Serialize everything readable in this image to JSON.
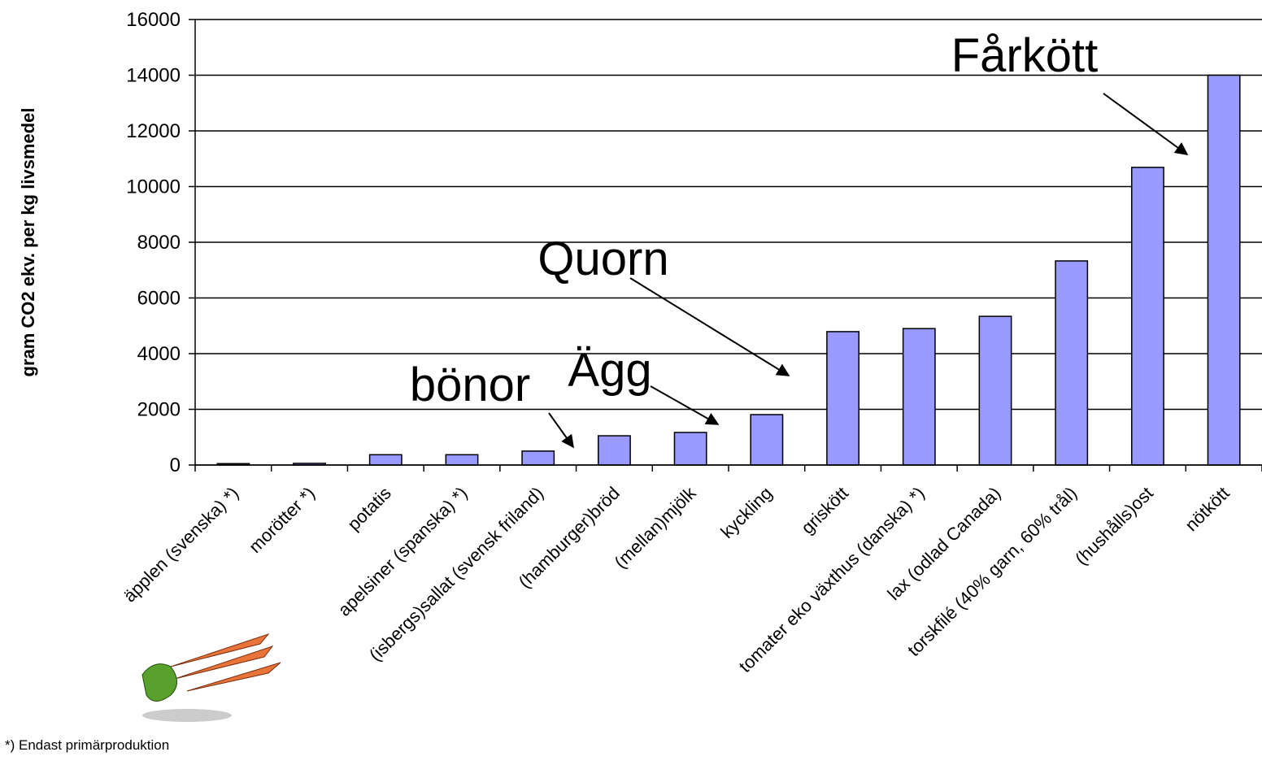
{
  "chart_data": {
    "type": "bar",
    "y_label": "gram CO2 ekv. per kg livsmedel",
    "categories": [
      "äpplen (svenska) *)",
      "morötter *)",
      "potatis",
      "apelsiner (spanska) *)",
      "(isbergs)sallat (svensk friland)",
      "(hamburger)bröd",
      "(mellan)mjölk",
      "kyckling",
      "griskött",
      "tomater eko växthus (danska) *)",
      "lax (odlad Canada)",
      "torskfilé (40% garn, 60% trål)",
      "(hushålls)ost",
      "nötkött"
    ],
    "values": [
      50,
      60,
      370,
      370,
      500,
      1050,
      1170,
      1810,
      4790,
      4900,
      5340,
      7330,
      10690,
      14000
    ],
    "color": "#9999ff",
    "ylim": [
      0,
      16000
    ],
    "yticks": [
      0,
      2000,
      4000,
      6000,
      8000,
      10000,
      12000,
      14000,
      16000
    ],
    "grid": true,
    "annotations": [
      "Fårkött",
      "Quorn",
      "Ägg",
      "bönor"
    ],
    "footnote": "*) Endast primärproduktion"
  }
}
